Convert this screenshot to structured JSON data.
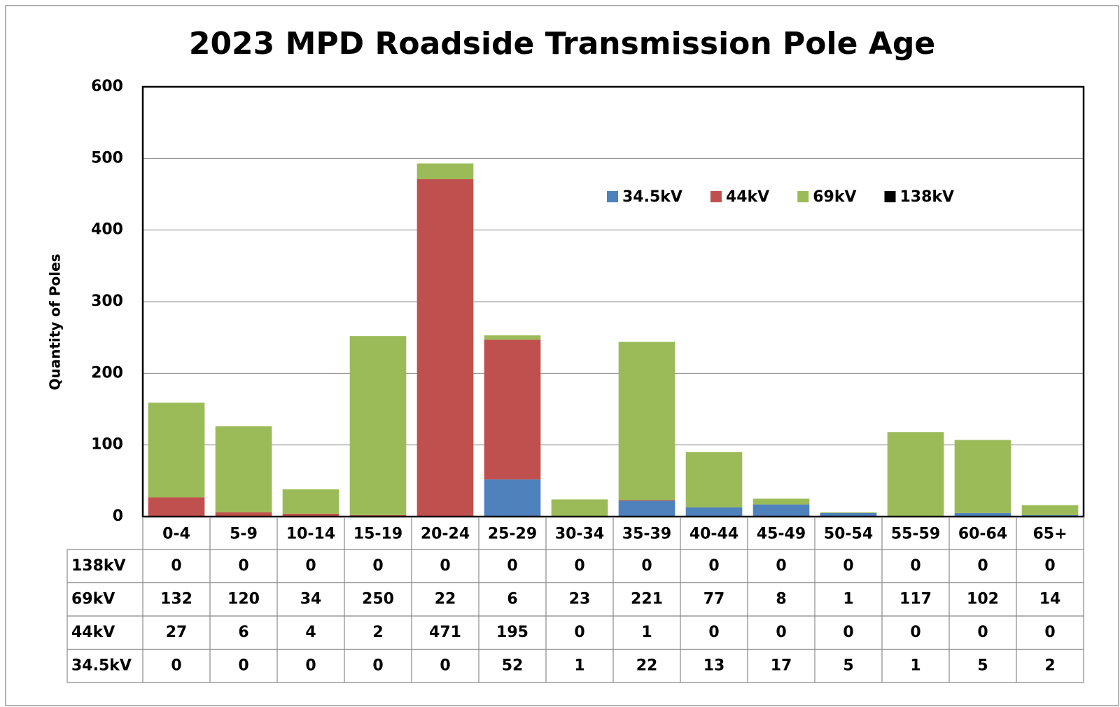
{
  "chart_data": {
    "type": "bar",
    "stacked": true,
    "title": "2023 MPD Roadside Transmission Pole Age",
    "ylabel": "Quantity of Poles",
    "categories": [
      "0-4",
      "5-9",
      "10-14",
      "15-19",
      "20-24",
      "25-29",
      "30-34",
      "35-39",
      "40-44",
      "45-49",
      "50-54",
      "55-59",
      "60-64",
      "65+"
    ],
    "series": [
      {
        "name": "34.5kV",
        "color": "#4f81bd",
        "values": [
          0,
          0,
          0,
          0,
          0,
          52,
          1,
          22,
          13,
          17,
          5,
          1,
          5,
          2
        ]
      },
      {
        "name": "44kV",
        "color": "#c0504d",
        "values": [
          27,
          6,
          4,
          2,
          471,
          195,
          0,
          1,
          0,
          0,
          0,
          0,
          0,
          0
        ]
      },
      {
        "name": "69kV",
        "color": "#9bbb59",
        "values": [
          132,
          120,
          34,
          250,
          22,
          6,
          23,
          221,
          77,
          8,
          1,
          117,
          102,
          14
        ]
      },
      {
        "name": "138kV",
        "color": "#000000",
        "values": [
          0,
          0,
          0,
          0,
          0,
          0,
          0,
          0,
          0,
          0,
          0,
          0,
          0,
          0
        ]
      }
    ],
    "ylim": [
      0,
      600
    ],
    "yticks": [
      0,
      100,
      200,
      300,
      400,
      500,
      600
    ],
    "grid": true,
    "data_table": true
  }
}
